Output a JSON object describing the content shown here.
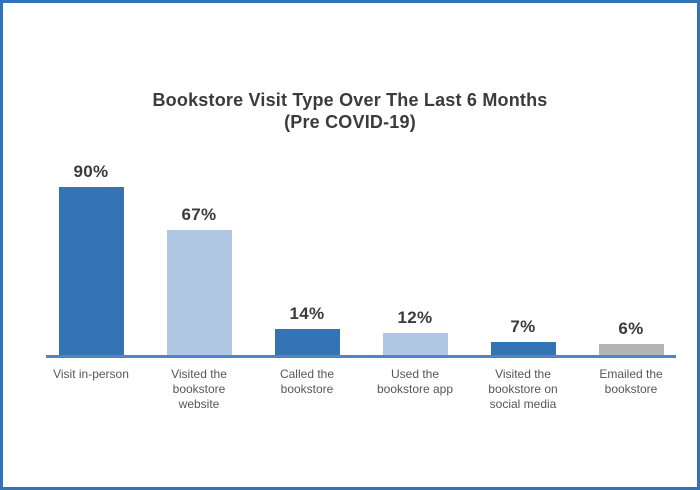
{
  "page": {
    "border_color": "#3273B5",
    "background_color": "#FFFFFF"
  },
  "chart_data": {
    "type": "bar",
    "title": "Bookstore Visit Type Over The Last 6 Months",
    "subtitle": "(Pre COVID-19)",
    "categories": [
      "Visit in-person",
      "Visited the bookstore website",
      "Called the bookstore",
      "Used the bookstore app",
      "Visited the bookstore on social media",
      "Emailed the bookstore"
    ],
    "values": [
      90,
      67,
      14,
      12,
      7,
      6
    ],
    "value_labels": [
      "90%",
      "67%",
      "14%",
      "12%",
      "7%",
      "6%"
    ],
    "bar_colors": [
      "#3474B4",
      "#B0C7E4",
      "#3474B4",
      "#B0C7E4",
      "#3474B4",
      "#B4B4B4"
    ],
    "axis_color": "#4E86C5",
    "title_color": "#3b3b3d",
    "value_label_color": "#3b3b3d",
    "category_label_color": "#54575E",
    "ylim": [
      0,
      90
    ],
    "grid": false,
    "xlabel": "",
    "ylabel": ""
  }
}
